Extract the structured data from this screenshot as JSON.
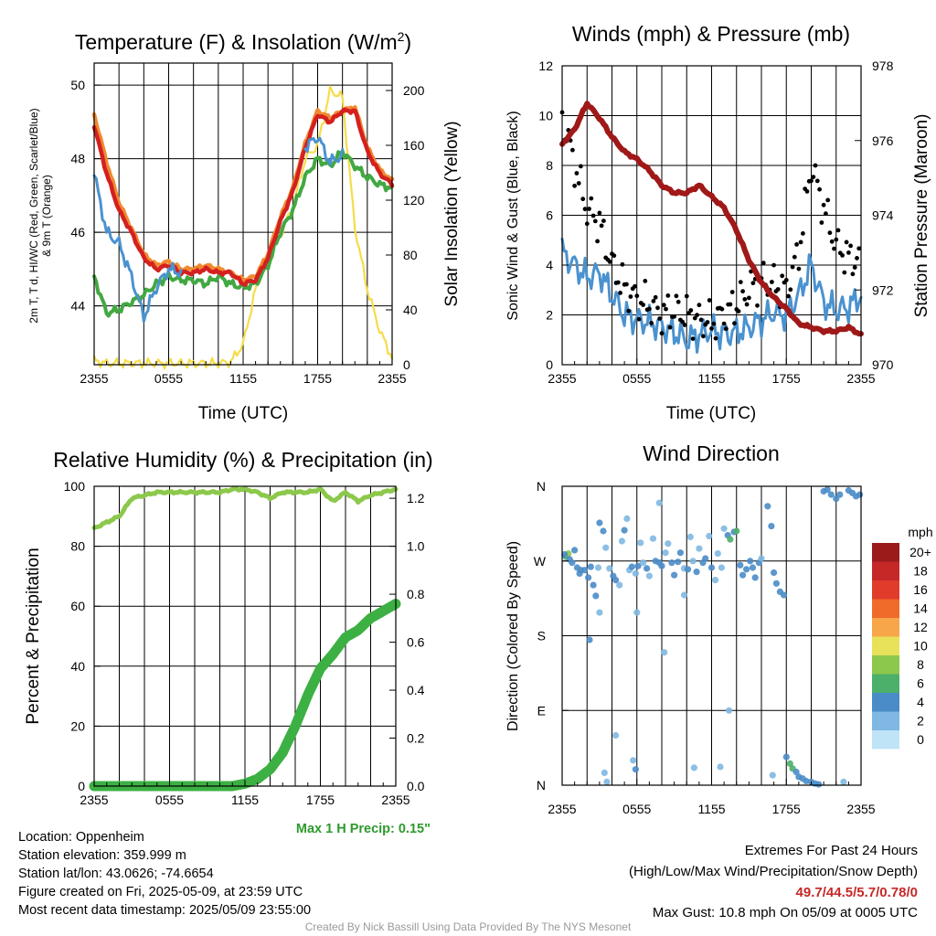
{
  "palette": {
    "red": "#d42020",
    "orange": "#f08a30",
    "green": "#42a842",
    "blue": "#4a92d0",
    "yellow": "#f5dc4a",
    "maroon": "#a01818",
    "humidity": "#8cc84b",
    "precip": "#3cb043"
  },
  "time_ticks": [
    "2355",
    "0555",
    "1155",
    "1755",
    "2355"
  ],
  "chart_data": [
    {
      "type": "line",
      "title": "Temperature (F) & Insolation (W/m²)",
      "title_main": "Temperature (F) & Insolation (W/m",
      "title_sup": "2",
      "title_end": ")",
      "xlabel": "Time (UTC)",
      "ylabel_line1": "2m T, T d, HI/WC (Red, Green, Scarlet/Blue)",
      "ylabel_line2": "& 9m T (Orange)",
      "ylabel2": "Solar Insolation (Yellow)",
      "ylim": [
        42.4,
        50.6
      ],
      "y2lim": [
        0,
        220
      ],
      "yticks": [
        44,
        46,
        48,
        50
      ],
      "y2ticks": [
        0,
        40,
        80,
        120,
        160,
        200
      ],
      "x": [
        0,
        1,
        2,
        3,
        4,
        5,
        6,
        7,
        8,
        9,
        10,
        11,
        12,
        13,
        14,
        15,
        16,
        17,
        18,
        19,
        20,
        21,
        22,
        23,
        24
      ],
      "series": [
        {
          "key": "temp2m",
          "values": [
            48.9,
            47.6,
            46.6,
            46.0,
            45.3,
            45.0,
            45.1,
            44.9,
            44.9,
            45.0,
            44.9,
            44.9,
            44.6,
            44.7,
            45.3,
            46.3,
            47.1,
            48.3,
            49.2,
            49.0,
            49.3,
            49.3,
            48.2,
            47.6,
            47.3
          ]
        },
        {
          "key": "temp9m",
          "values": [
            49.2,
            47.9,
            46.8,
            46.1,
            45.4,
            45.1,
            45.2,
            45.0,
            45.0,
            45.1,
            45.0,
            44.9,
            44.7,
            44.8,
            45.4,
            46.4,
            47.2,
            48.4,
            49.3,
            49.1,
            49.3,
            49.4,
            48.3,
            47.7,
            47.4
          ]
        },
        {
          "key": "dewpoint",
          "values": [
            44.8,
            43.8,
            43.9,
            44.1,
            44.3,
            44.6,
            44.8,
            44.7,
            44.7,
            44.6,
            44.8,
            44.6,
            44.5,
            44.6,
            45.1,
            46.0,
            46.6,
            47.5,
            48.0,
            47.8,
            48.2,
            47.8,
            47.5,
            47.3,
            47.2
          ]
        },
        {
          "key": "windchill_blue",
          "values": [
            47.6,
            46.0,
            45.7,
            44.8,
            43.7,
            44.5,
            45.0,
            44.9,
            null,
            null,
            null,
            null,
            null,
            null,
            null,
            null,
            null,
            48.3,
            48.6,
            47.9,
            48.1,
            null,
            null,
            null,
            null
          ]
        },
        {
          "key": "insolation",
          "values": [
            3,
            1,
            1,
            1,
            1,
            1,
            1,
            1,
            1,
            1,
            1,
            2,
            15,
            55,
            80,
            95,
            115,
            150,
            160,
            200,
            195,
            100,
            55,
            25,
            5
          ]
        }
      ]
    },
    {
      "type": "line",
      "title": "Winds (mph) & Pressure (mb)",
      "xlabel": "Time (UTC)",
      "ylabel": "Sonic Wind & Gust (Blue, Black)",
      "ylabel2": "Station Pressure (Maroon)",
      "ylim": [
        0,
        12
      ],
      "y2lim": [
        970,
        978
      ],
      "yticks": [
        0,
        2,
        4,
        6,
        8,
        10,
        12
      ],
      "y2ticks": [
        970,
        972,
        974,
        976,
        978
      ],
      "x": [
        0,
        1,
        2,
        3,
        4,
        5,
        6,
        7,
        8,
        9,
        10,
        11,
        12,
        13,
        14,
        15,
        16,
        17,
        18,
        19,
        20,
        21,
        22,
        23,
        24
      ],
      "series": [
        {
          "key": "pressure",
          "values": [
            975.9,
            976.3,
            977.0,
            976.6,
            976.1,
            975.7,
            975.5,
            975.2,
            974.8,
            974.6,
            974.6,
            974.8,
            974.5,
            974.2,
            973.6,
            972.8,
            972.2,
            971.8,
            971.5,
            971.1,
            971.0,
            970.9,
            970.9,
            971.0,
            970.8
          ]
        },
        {
          "key": "wind",
          "values": [
            4.5,
            4.0,
            3.5,
            3.7,
            2.8,
            2.0,
            1.8,
            1.7,
            1.5,
            1.3,
            1.0,
            1.2,
            1.4,
            1.2,
            1.3,
            1.5,
            1.8,
            2.1,
            2.0,
            2.8,
            4.0,
            2.5,
            2.2,
            2.3,
            2.8
          ]
        },
        {
          "key": "gust",
          "values": [
            10.0,
            8.0,
            6.2,
            5.7,
            4.0,
            3.1,
            2.6,
            2.4,
            2.0,
            2.2,
            2.0,
            1.8,
            1.7,
            2.0,
            2.4,
            3.0,
            3.4,
            3.2,
            3.0,
            4.5,
            8.0,
            6.3,
            4.8,
            4.3,
            4.2
          ]
        }
      ]
    },
    {
      "type": "line",
      "title": "Relative Humidity (%) & Precipitation (in)",
      "ylabel": "Percent & Precipitation",
      "ylim": [
        0,
        100
      ],
      "y2lim": [
        0,
        1.25
      ],
      "yticks": [
        0,
        20,
        40,
        60,
        80,
        100
      ],
      "y2ticks": [
        0.0,
        0.2,
        0.4,
        0.6,
        0.8,
        1.0,
        1.2
      ],
      "x": [
        0,
        1,
        2,
        3,
        4,
        5,
        6,
        7,
        8,
        9,
        10,
        11,
        12,
        13,
        14,
        15,
        16,
        17,
        18,
        19,
        20,
        21,
        22,
        23,
        24
      ],
      "series": [
        {
          "key": "rh",
          "values": [
            86,
            88,
            90,
            96,
            97,
            98,
            98,
            98,
            98,
            98,
            98,
            99,
            99,
            98,
            96,
            98,
            98,
            98,
            99,
            95,
            98,
            95,
            97,
            98,
            99
          ]
        },
        {
          "key": "precip",
          "values": [
            0,
            0,
            0,
            0,
            0,
            0,
            0,
            0,
            0,
            0,
            0,
            0,
            0.01,
            0.03,
            0.07,
            0.14,
            0.25,
            0.38,
            0.49,
            0.55,
            0.62,
            0.65,
            0.7,
            0.73,
            0.76
          ]
        }
      ]
    },
    {
      "type": "scatter",
      "title": "Wind Direction",
      "ylabel": "Direction (Colored By Speed)",
      "direction_labels": [
        "N",
        "E",
        "S",
        "W",
        "N"
      ],
      "ylim": [
        0,
        360
      ],
      "legend_unit": "mph",
      "legend_labels": [
        "20+",
        "18",
        "16",
        "14",
        "12",
        "10",
        "8",
        "6",
        "4",
        "2",
        "0"
      ],
      "legend_colors": [
        "#9b1b1b",
        "#c62828",
        "#e03b2b",
        "#f06a2a",
        "#f7a64a",
        "#e8e25a",
        "#8cc84b",
        "#4caf6a",
        "#4a8cc8",
        "#7fb8e2",
        "#bfe4f7"
      ],
      "points": [
        [
          0.3,
          275,
          5
        ],
        [
          0.5,
          279,
          7
        ],
        [
          0.6,
          272,
          4
        ],
        [
          0.8,
          268,
          4
        ],
        [
          1.0,
          283,
          3
        ],
        [
          1.2,
          262,
          4
        ],
        [
          1.4,
          255,
          4
        ],
        [
          1.8,
          259,
          3
        ],
        [
          2.1,
          250,
          4
        ],
        [
          2.3,
          263,
          4
        ],
        [
          2.5,
          241,
          4
        ],
        [
          2.7,
          228,
          3
        ],
        [
          2.9,
          262,
          2
        ],
        [
          3.0,
          316,
          4
        ],
        [
          3.3,
          306,
          3
        ],
        [
          3.5,
          286,
          2
        ],
        [
          3.8,
          261,
          2
        ],
        [
          4.1,
          252,
          4
        ],
        [
          4.3,
          247,
          4
        ],
        [
          4.6,
          241,
          2
        ],
        [
          4.8,
          294,
          2
        ],
        [
          5.0,
          307,
          3
        ],
        [
          5.2,
          321,
          2
        ],
        [
          5.4,
          259,
          1
        ],
        [
          5.6,
          263,
          3
        ],
        [
          5.9,
          255,
          2
        ],
        [
          6.1,
          264,
          3
        ],
        [
          6.3,
          292,
          2
        ],
        [
          6.5,
          268,
          1
        ],
        [
          6.8,
          261,
          3
        ],
        [
          7.0,
          252,
          2
        ],
        [
          7.3,
          297,
          2
        ],
        [
          7.5,
          270,
          4
        ],
        [
          7.8,
          268,
          4
        ],
        [
          8.0,
          264,
          4
        ],
        [
          8.3,
          280,
          2
        ],
        [
          8.5,
          291,
          2
        ],
        [
          8.8,
          268,
          4
        ],
        [
          9.0,
          253,
          3
        ],
        [
          9.3,
          269,
          4
        ],
        [
          9.5,
          280,
          3
        ],
        [
          9.8,
          261,
          1
        ],
        [
          10.1,
          260,
          3
        ],
        [
          10.3,
          299,
          2
        ],
        [
          10.5,
          270,
          2
        ],
        [
          10.8,
          257,
          3
        ],
        [
          11.0,
          285,
          1
        ],
        [
          11.3,
          268,
          4
        ],
        [
          11.5,
          273,
          4
        ],
        [
          11.8,
          300,
          2
        ],
        [
          12.0,
          262,
          4
        ],
        [
          12.3,
          247,
          2
        ],
        [
          12.5,
          279,
          2
        ],
        [
          12.8,
          262,
          2
        ],
        [
          13.0,
          309,
          2
        ],
        [
          13.3,
          301,
          4
        ],
        [
          13.5,
          296,
          5
        ],
        [
          13.8,
          305,
          4
        ],
        [
          14.0,
          306,
          5
        ],
        [
          14.3,
          265,
          4
        ],
        [
          14.5,
          253,
          4
        ],
        [
          14.8,
          260,
          4
        ],
        [
          15.1,
          270,
          3
        ],
        [
          15.3,
          262,
          4
        ],
        [
          15.5,
          250,
          4
        ],
        [
          15.8,
          268,
          3
        ],
        [
          16.0,
          273,
          2
        ],
        [
          16.5,
          336,
          4
        ],
        [
          16.8,
          312,
          4
        ],
        [
          17.0,
          256,
          4
        ],
        [
          17.2,
          243,
          4
        ],
        [
          17.5,
          233,
          4
        ],
        [
          17.8,
          229,
          3
        ],
        [
          18.0,
          34,
          4
        ],
        [
          18.3,
          26,
          5
        ],
        [
          18.5,
          20,
          6
        ],
        [
          18.8,
          16,
          4
        ],
        [
          19.0,
          10,
          3
        ],
        [
          19.3,
          8,
          4
        ],
        [
          19.6,
          5,
          3
        ],
        [
          20.0,
          4,
          3
        ],
        [
          20.3,
          2,
          4
        ],
        [
          20.6,
          1,
          4
        ],
        [
          21.0,
          354,
          4
        ],
        [
          21.3,
          356,
          3
        ],
        [
          21.6,
          350,
          4
        ],
        [
          22.0,
          345,
          4
        ],
        [
          22.3,
          350,
          3
        ],
        [
          22.6,
          4,
          2
        ],
        [
          23.0,
          355,
          4
        ],
        [
          23.3,
          352,
          4
        ],
        [
          23.6,
          348,
          4
        ],
        [
          23.9,
          350,
          4
        ],
        [
          0.2,
          278,
          3
        ],
        [
          1.5,
          259,
          4
        ],
        [
          5.7,
          30,
          2
        ],
        [
          5.9,
          19,
          3
        ],
        [
          4.3,
          60,
          2
        ],
        [
          3.4,
          15,
          2
        ],
        [
          3.6,
          4,
          2
        ],
        [
          8.2,
          160,
          2
        ],
        [
          13.4,
          90,
          2
        ],
        [
          16.9,
          12,
          2
        ],
        [
          12.7,
          22,
          2
        ],
        [
          7.8,
          340,
          2
        ],
        [
          9.8,
          229,
          2
        ],
        [
          6.0,
          208,
          2
        ],
        [
          3.0,
          208,
          2
        ],
        [
          2.2,
          175,
          4
        ],
        [
          10.6,
          21,
          2
        ]
      ]
    }
  ],
  "info": {
    "location": "Location: Oppenheim",
    "elevation": "Station elevation: 359.999 m",
    "latlon": "Station lat/lon: 43.0626; -74.6654",
    "created": "Figure created on Fri, 2025-05-09, at 23:59 UTC",
    "timestamp": "Most recent data timestamp: 2025/05/09 23:55:00"
  },
  "max_precip": "Max 1 H Precip: 0.15\"",
  "extremes": {
    "title": "Extremes For Past 24 Hours",
    "subtitle": "(High/Low/Max Wind/Precipitation/Snow Depth)",
    "values": "49.7/44.5/5.7/0.78/0",
    "max_gust": "Max Gust: 10.8 mph On 05/09 at 0005 UTC"
  },
  "footer": "Created By Nick Bassill Using Data Provided By The NYS Mesonet"
}
